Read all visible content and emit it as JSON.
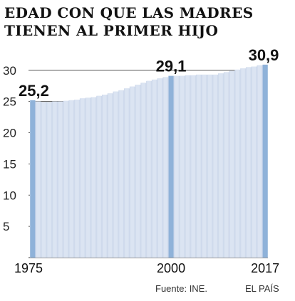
{
  "title": {
    "line1": "EDAD CON QUE LAS MADRES",
    "line2": "TIENEN AL PRIMER HIJO"
  },
  "source": "Fuente: INE.",
  "brand": "EL PAÍS",
  "colors": {
    "area_fill": "#cfdaec",
    "bar_fill": "#dbe4f2",
    "highlight_bar": "#8fb2d9",
    "grid": "#555555"
  },
  "chart_data": {
    "type": "bar",
    "title": "EDAD CON QUE LAS MADRES TIENEN AL PRIMER HIJO",
    "xlabel": "",
    "ylabel": "",
    "ylim": [
      0,
      31
    ],
    "yticks": [
      5,
      10,
      15,
      20,
      25,
      30
    ],
    "xticks": [
      "1975",
      "2000",
      "2017"
    ],
    "grid": true,
    "highlighted": [
      {
        "year": "1975",
        "value": 25.2,
        "label": "25,2"
      },
      {
        "year": "2000",
        "value": 29.1,
        "label": "29,1"
      },
      {
        "year": "2017",
        "value": 30.9,
        "label": "30,9"
      }
    ],
    "categories": [
      "1975",
      "1976",
      "1977",
      "1978",
      "1979",
      "1980",
      "1981",
      "1982",
      "1983",
      "1984",
      "1985",
      "1986",
      "1987",
      "1988",
      "1989",
      "1990",
      "1991",
      "1992",
      "1993",
      "1994",
      "1995",
      "1996",
      "1997",
      "1998",
      "1999",
      "2000",
      "2001",
      "2002",
      "2003",
      "2004",
      "2005",
      "2006",
      "2007",
      "2008",
      "2009",
      "2010",
      "2011",
      "2012",
      "2013",
      "2014",
      "2015",
      "2016",
      "2017"
    ],
    "values": [
      25.2,
      25.0,
      24.9,
      24.9,
      25.0,
      25.0,
      25.1,
      25.2,
      25.3,
      25.5,
      25.6,
      25.7,
      25.9,
      26.1,
      26.3,
      26.6,
      26.8,
      27.1,
      27.4,
      27.7,
      28.0,
      28.3,
      28.5,
      28.7,
      28.9,
      29.1,
      29.1,
      29.1,
      29.2,
      29.2,
      29.3,
      29.3,
      29.3,
      29.3,
      29.5,
      29.7,
      29.9,
      30.1,
      30.3,
      30.5,
      30.6,
      30.8,
      30.9
    ]
  }
}
